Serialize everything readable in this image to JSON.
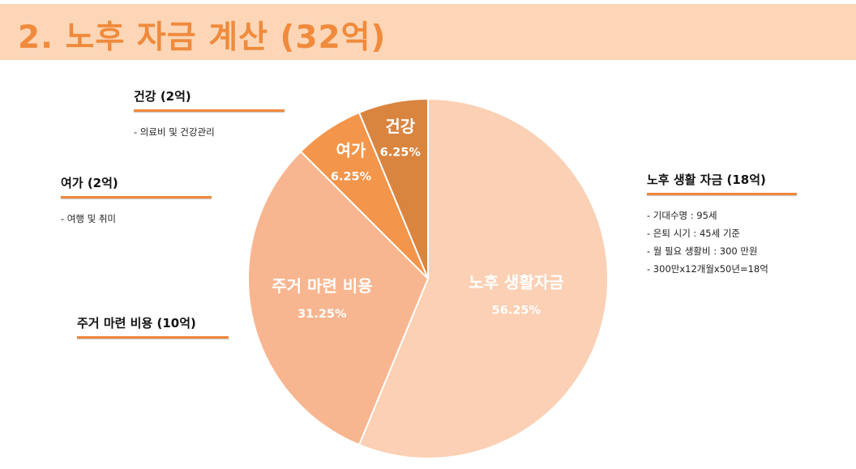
{
  "title": "2. 노후 자금 계산 (32억)",
  "colors": {
    "accent": "#f08a3c",
    "title_bar": "#fcd6b6"
  },
  "callouts": {
    "health": {
      "heading": "건강 (2억)",
      "items": [
        "- 의료비 및 건강관리"
      ]
    },
    "leisure": {
      "heading": "여가 (2억)",
      "items": [
        "- 여행 및 취미"
      ]
    },
    "housing": {
      "heading": "주거 마련 비용 (10억)",
      "items": []
    },
    "living": {
      "heading": "노후 생활 자금 (18억)",
      "items": [
        "- 기대수명 : 95세",
        "- 은퇴 시기 : 45세 기준",
        "-  월 필요 생활비 : 300 만원",
        "-  300만x12개월x50년=18억"
      ]
    }
  },
  "chart_data": {
    "type": "pie",
    "title": "",
    "slices": [
      {
        "label": "노후 생활자금",
        "value": 56.25,
        "pct_label": "56.25%",
        "color": "#fbd0b4"
      },
      {
        "label": "주거 마련 비용",
        "value": 31.25,
        "pct_label": "31.25%",
        "color": "#f8b690"
      },
      {
        "label": "여가",
        "value": 6.25,
        "pct_label": "6.25%",
        "color": "#f3954a"
      },
      {
        "label": "건강",
        "value": 6.25,
        "pct_label": "6.25%",
        "color": "#d98540"
      }
    ],
    "start": "12 o'clock",
    "direction": "clockwise"
  }
}
